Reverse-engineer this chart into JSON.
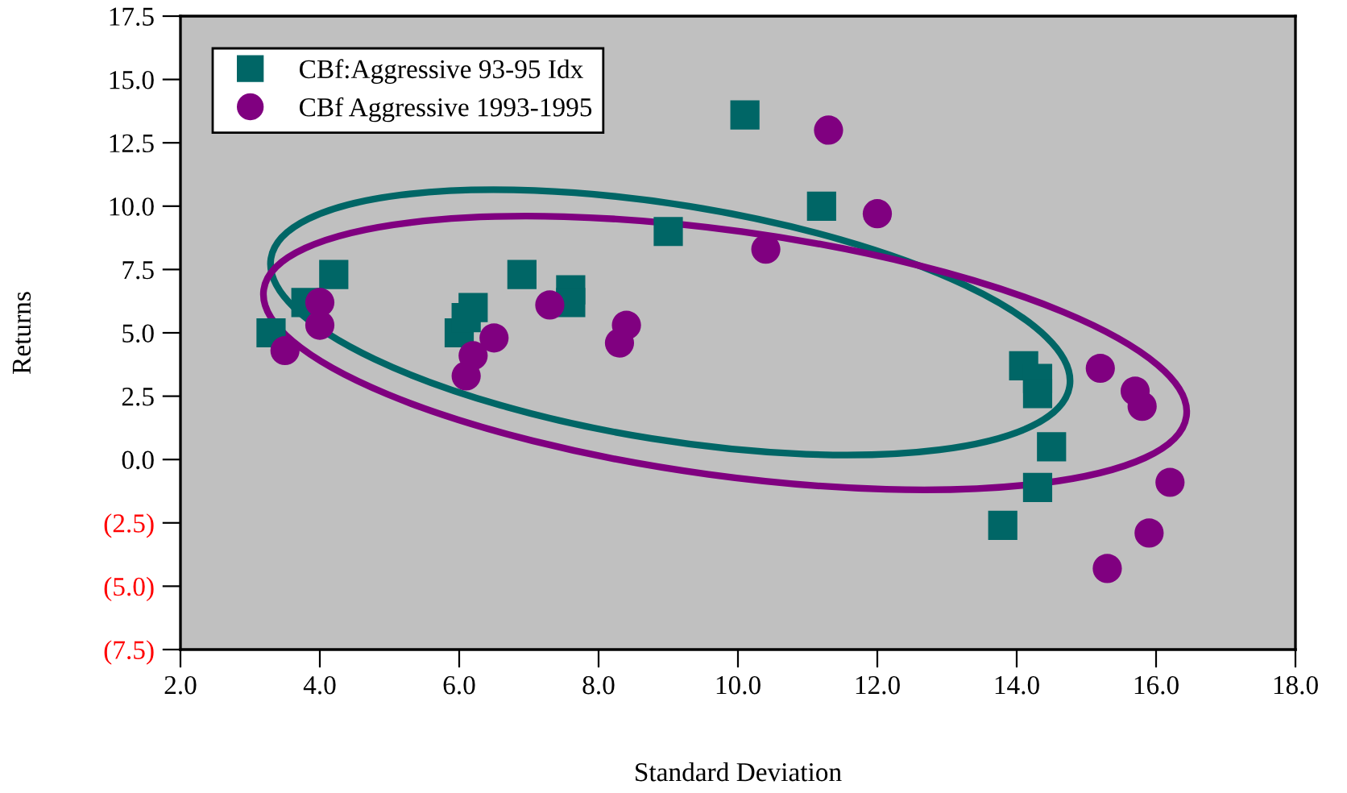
{
  "chart_data": {
    "type": "scatter",
    "xlabel": "Standard Deviation",
    "ylabel": "Returns",
    "xlim": [
      2.0,
      18.0
    ],
    "xticks": [
      {
        "value": 2,
        "label": "2.0"
      },
      {
        "value": 4,
        "label": "4.0"
      },
      {
        "value": 6,
        "label": "6.0"
      },
      {
        "value": 8,
        "label": "8.0"
      },
      {
        "value": 10,
        "label": "10.0"
      },
      {
        "value": 12,
        "label": "12.0"
      },
      {
        "value": 14,
        "label": "14.0"
      },
      {
        "value": 16,
        "label": "16.0"
      },
      {
        "value": 18,
        "label": "18.0"
      }
    ],
    "ylim": [
      -7.5,
      17.5
    ],
    "yticks": [
      {
        "value": -7.5,
        "label": "(7.5)"
      },
      {
        "value": -5,
        "label": "(5.0)"
      },
      {
        "value": -2.5,
        "label": "(2.5)"
      },
      {
        "value": 0,
        "label": "0.0"
      },
      {
        "value": 2.5,
        "label": "2.5"
      },
      {
        "value": 5,
        "label": "5.0"
      },
      {
        "value": 7.5,
        "label": "7.5"
      },
      {
        "value": 10,
        "label": "10.0"
      },
      {
        "value": 12.5,
        "label": "12.5"
      },
      {
        "value": 15,
        "label": "15.0"
      },
      {
        "value": 17.5,
        "label": "17.5"
      }
    ],
    "grid": false,
    "legend": "top left",
    "series": [
      {
        "name": "CBf:Aggressive 93-95 Idx",
        "marker": "square",
        "color": "#006666",
        "x": [
          3.3,
          3.8,
          4.2,
          6.0,
          6.2,
          6.1,
          6.9,
          7.6,
          7.6,
          9.0,
          10.1,
          11.2,
          14.1,
          14.3,
          14.3,
          14.5,
          14.3,
          13.8
        ],
        "values": [
          5.0,
          6.2,
          7.3,
          5.0,
          6.0,
          5.6,
          7.3,
          6.7,
          6.2,
          9.0,
          13.6,
          10.0,
          3.7,
          3.2,
          2.6,
          0.5,
          -1.1,
          -2.6
        ]
      },
      {
        "name": "CBf Aggressive 1993-1995",
        "marker": "circle",
        "color": "#800080",
        "x": [
          3.5,
          4.0,
          4.0,
          6.1,
          6.2,
          6.5,
          7.3,
          8.3,
          8.4,
          10.4,
          11.3,
          12.0,
          15.2,
          15.7,
          15.8,
          16.2,
          15.9,
          15.3
        ],
        "values": [
          4.3,
          6.2,
          5.3,
          3.3,
          4.1,
          4.8,
          6.1,
          4.6,
          5.3,
          8.3,
          13.0,
          9.7,
          3.6,
          2.7,
          2.1,
          -0.9,
          -2.9,
          -4.3
        ]
      }
    ]
  }
}
